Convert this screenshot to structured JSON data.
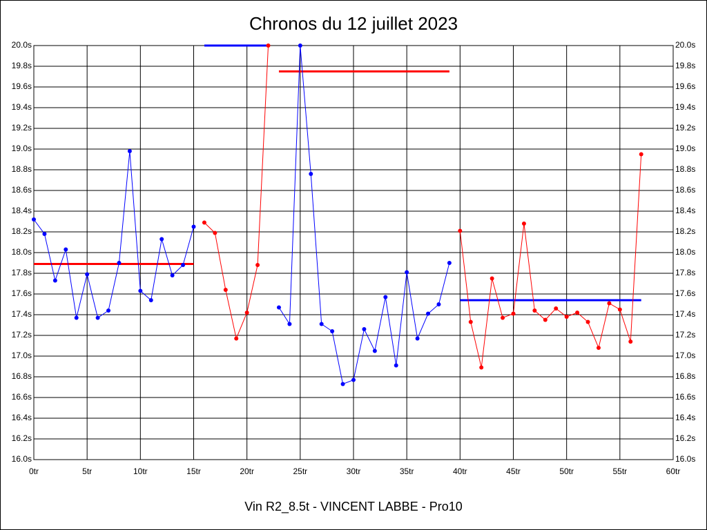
{
  "chart_data": {
    "type": "line",
    "title": "Chronos du 12 juillet 2023",
    "footer": "Vin R2_8.5t - VINCENT LABBE - Pro10",
    "xlim": [
      0,
      60
    ],
    "ylim": [
      16.0,
      20.0
    ],
    "grid": true,
    "xticks": [
      {
        "value": 0,
        "label": "0tr"
      },
      {
        "value": 5,
        "label": "5tr"
      },
      {
        "value": 10,
        "label": "10tr"
      },
      {
        "value": 15,
        "label": "15tr"
      },
      {
        "value": 20,
        "label": "20tr"
      },
      {
        "value": 25,
        "label": "25tr"
      },
      {
        "value": 30,
        "label": "30tr"
      },
      {
        "value": 35,
        "label": "35tr"
      },
      {
        "value": 40,
        "label": "40tr"
      },
      {
        "value": 45,
        "label": "45tr"
      },
      {
        "value": 50,
        "label": "50tr"
      },
      {
        "value": 55,
        "label": "55tr"
      },
      {
        "value": 60,
        "label": "60tr"
      }
    ],
    "yticks": [
      {
        "value": 16.0,
        "label": "16.0s"
      },
      {
        "value": 16.2,
        "label": "16.2s"
      },
      {
        "value": 16.4,
        "label": "16.4s"
      },
      {
        "value": 16.6,
        "label": "16.6s"
      },
      {
        "value": 16.8,
        "label": "16.8s"
      },
      {
        "value": 17.0,
        "label": "17.0s"
      },
      {
        "value": 17.2,
        "label": "17.2s"
      },
      {
        "value": 17.4,
        "label": "17.4s"
      },
      {
        "value": 17.6,
        "label": "17.6s"
      },
      {
        "value": 17.8,
        "label": "17.8s"
      },
      {
        "value": 18.0,
        "label": "18.0s"
      },
      {
        "value": 18.2,
        "label": "18.2s"
      },
      {
        "value": 18.4,
        "label": "18.4s"
      },
      {
        "value": 18.6,
        "label": "18.6s"
      },
      {
        "value": 18.8,
        "label": "18.8s"
      },
      {
        "value": 19.0,
        "label": "19.0s"
      },
      {
        "value": 19.2,
        "label": "19.2s"
      },
      {
        "value": 19.4,
        "label": "19.4s"
      },
      {
        "value": 19.6,
        "label": "19.6s"
      },
      {
        "value": 19.8,
        "label": "19.8s"
      },
      {
        "value": 20.0,
        "label": "20.0s"
      }
    ],
    "series": [
      {
        "color": "#0000ff",
        "x": [
          0,
          1,
          2,
          3,
          4,
          5,
          6,
          7,
          8,
          9,
          10,
          11,
          12,
          13,
          14,
          15
        ],
        "values": [
          18.32,
          18.18,
          17.73,
          18.03,
          17.37,
          17.79,
          17.37,
          17.44,
          17.9,
          18.98,
          17.63,
          17.54,
          18.13,
          17.78,
          17.88,
          18.25
        ]
      },
      {
        "color": "#ff0000",
        "x": [
          16,
          17,
          18,
          19,
          20,
          21,
          22
        ],
        "values": [
          18.29,
          18.19,
          17.64,
          17.17,
          17.42,
          17.88,
          20.0
        ]
      },
      {
        "color": "#0000ff",
        "x": [
          23,
          24,
          25,
          26,
          27,
          28,
          29,
          30,
          31,
          32,
          33,
          34,
          35,
          36,
          37,
          38,
          39
        ],
        "values": [
          17.47,
          17.31,
          20.0,
          18.76,
          17.31,
          17.24,
          16.73,
          16.77,
          17.26,
          17.05,
          17.57,
          16.91,
          17.81,
          17.17,
          17.41,
          17.5,
          17.9
        ]
      },
      {
        "color": "#ff0000",
        "x": [
          40,
          41,
          42,
          43,
          44,
          45,
          46,
          47,
          48,
          49,
          50,
          51,
          52,
          53,
          54,
          55,
          56,
          57
        ],
        "values": [
          18.21,
          17.33,
          16.89,
          17.75,
          17.37,
          17.41,
          18.28,
          17.44,
          17.35,
          17.46,
          17.38,
          17.42,
          17.33,
          17.08,
          17.51,
          17.45,
          17.14,
          18.95
        ]
      }
    ],
    "averages": [
      {
        "color": "#ff0000",
        "x": [
          0,
          15
        ],
        "value": 17.89
      },
      {
        "color": "#0000ff",
        "x": [
          16,
          22
        ],
        "value": 20.0
      },
      {
        "color": "#ff0000",
        "x": [
          23,
          39
        ],
        "value": 19.75
      },
      {
        "color": "#0000ff",
        "x": [
          40,
          57
        ],
        "value": 17.54
      }
    ]
  }
}
